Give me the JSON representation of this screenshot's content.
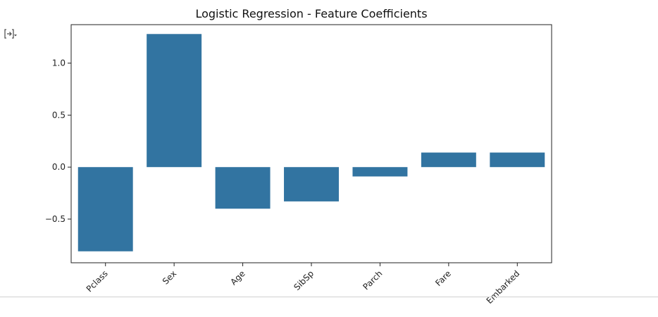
{
  "cell": {
    "output_toggle_icon": "output-collapse-icon"
  },
  "chart_data": {
    "type": "bar",
    "title": "Logistic Regression - Feature Coefficients",
    "xlabel": "",
    "ylabel": "",
    "categories": [
      "Pclass",
      "Sex",
      "Age",
      "SibSp",
      "Parch",
      "Fare",
      "Embarked"
    ],
    "values": [
      -0.81,
      1.28,
      -0.4,
      -0.33,
      -0.09,
      0.14,
      0.14
    ],
    "ylim": [
      -0.92,
      1.37
    ],
    "yticks": [
      -0.5,
      0.0,
      0.5,
      1.0
    ],
    "ytick_labels": [
      "−0.5",
      "0.0",
      "0.5",
      "1.0"
    ],
    "xtick_rotation": 45,
    "bar_color": "#3274a1",
    "grid": false,
    "legend": false
  }
}
